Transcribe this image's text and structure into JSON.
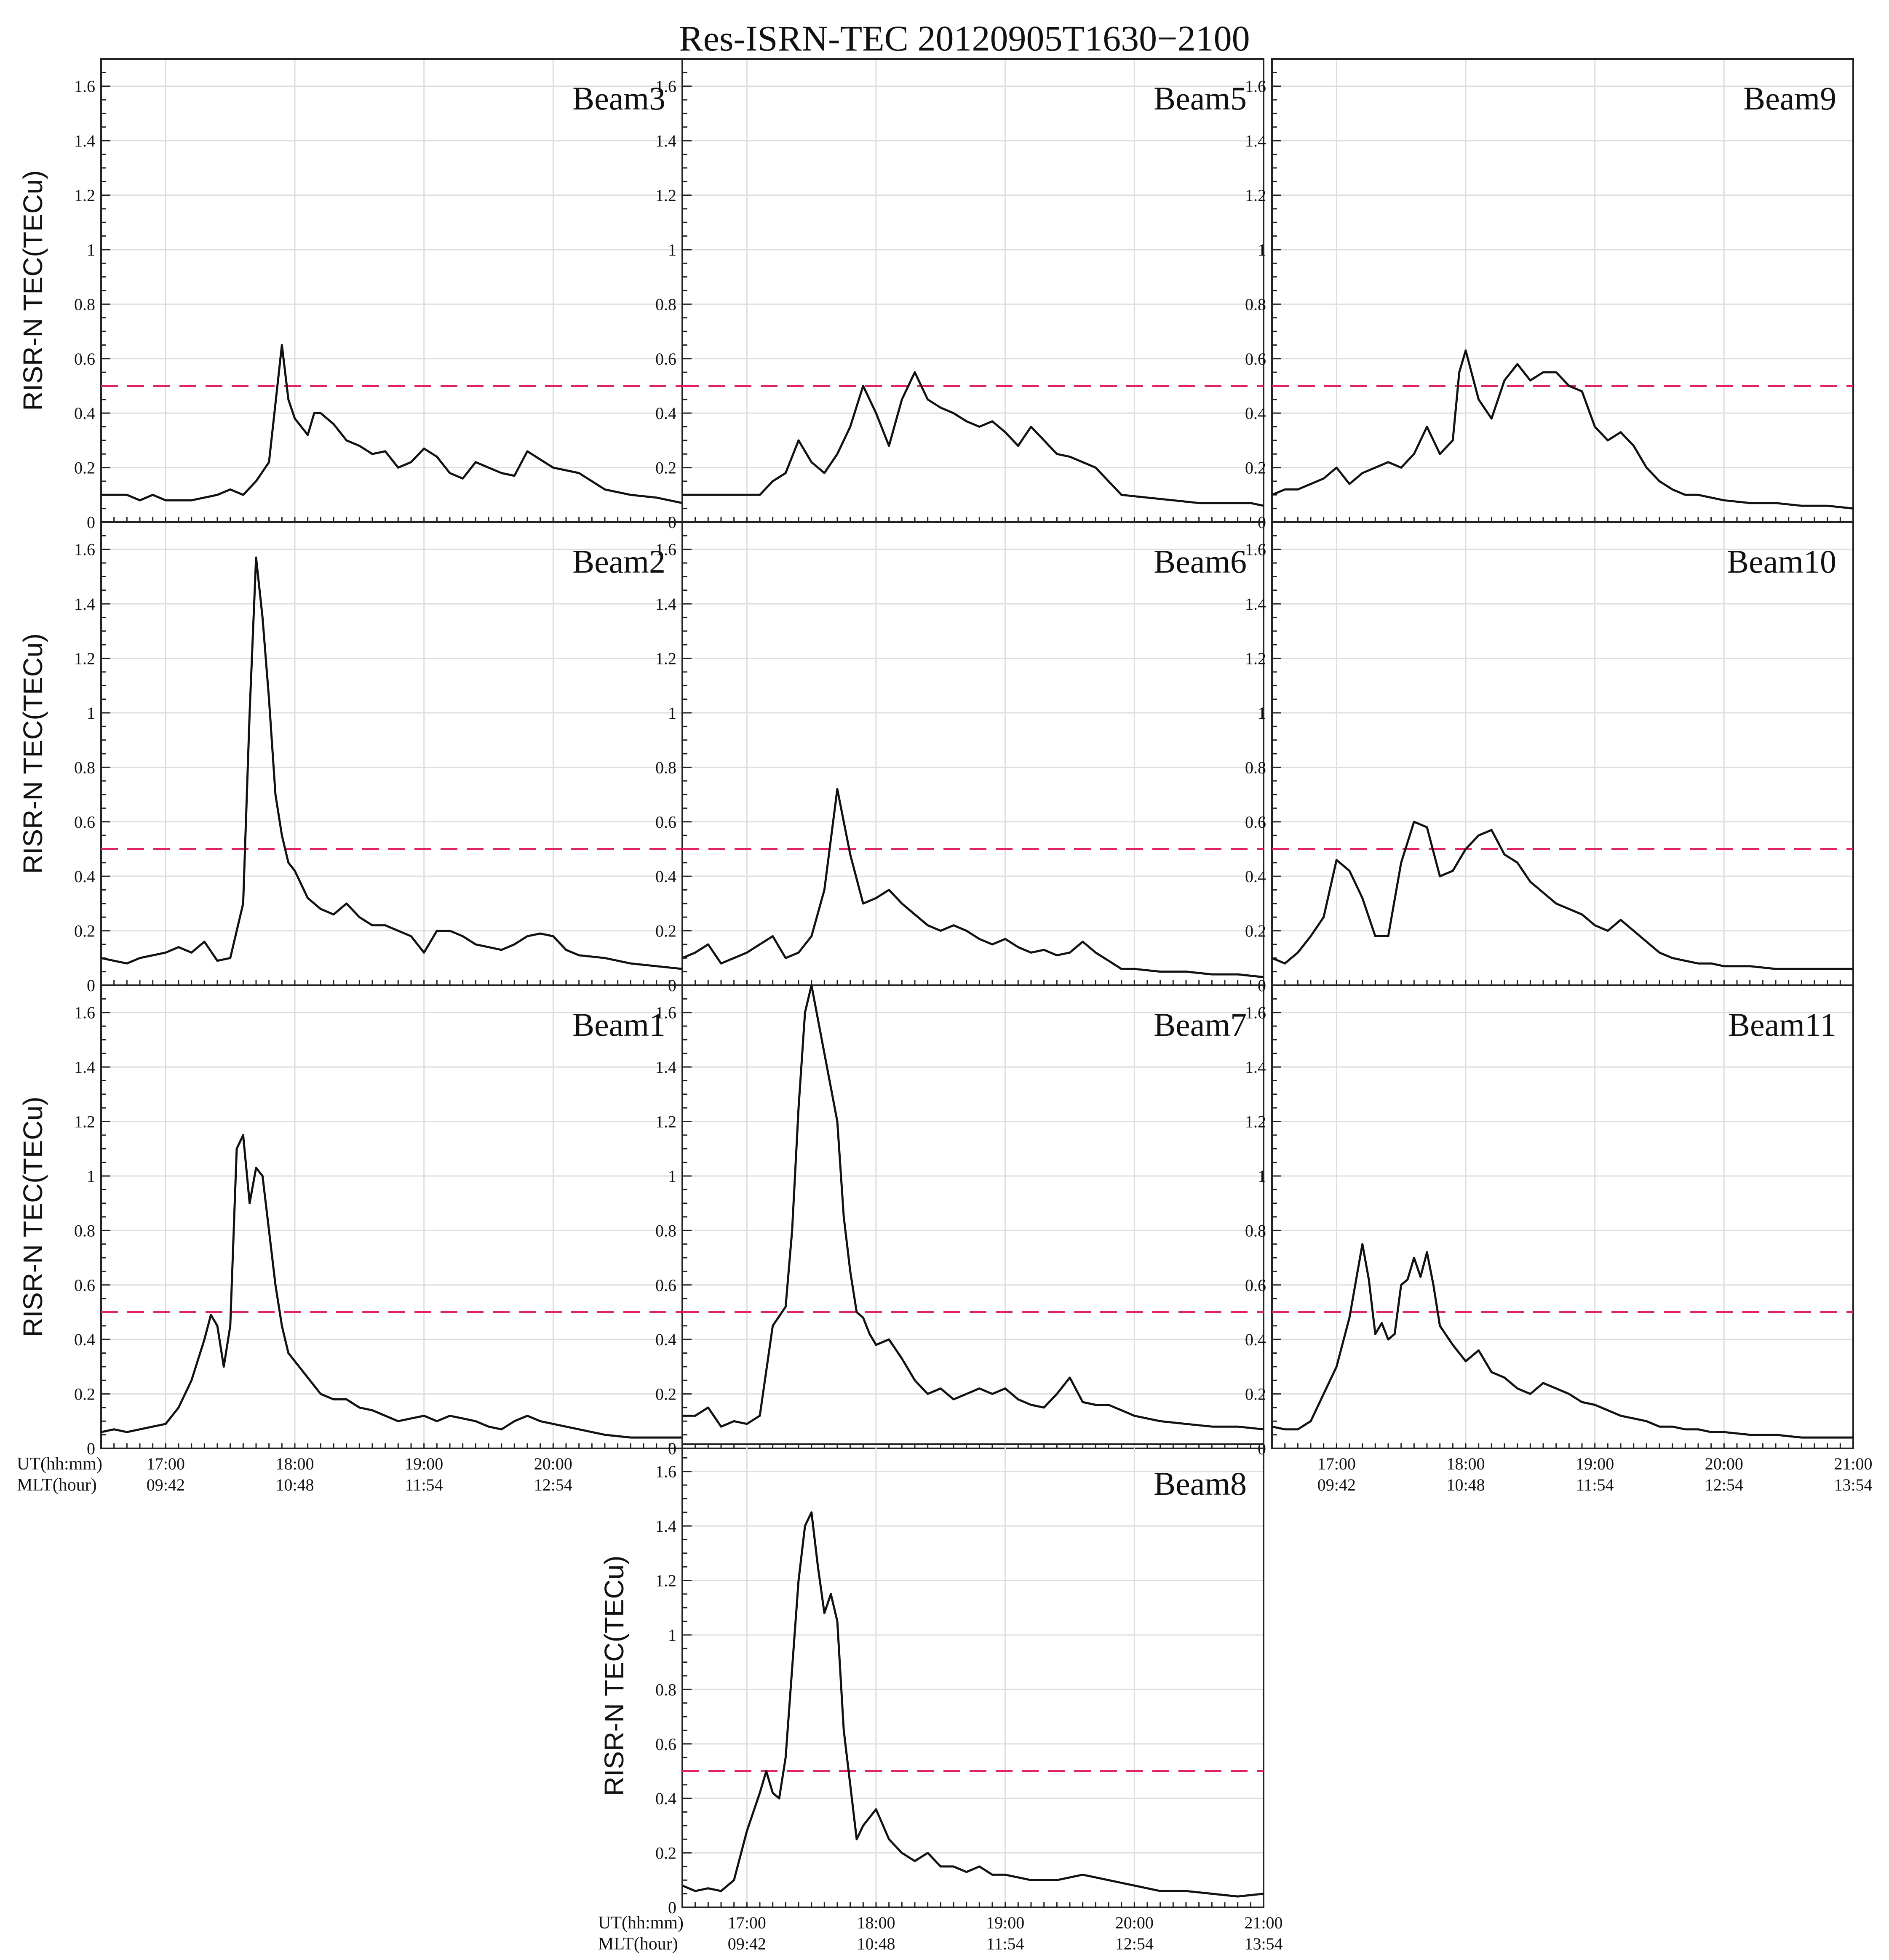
{
  "chart_data": {
    "type": "line",
    "title": "Res-ISRN-TEC  20120905T1630−2100",
    "ylabel": "RISR-N TEC(TECu)",
    "ylim": [
      0,
      1.7
    ],
    "y_ticks": [
      0,
      0.2,
      0.4,
      0.6,
      0.8,
      1,
      1.2,
      1.4,
      1.6
    ],
    "y_tick_labels": [
      "0",
      "0.2",
      "0.4",
      "0.6",
      "0.8",
      "1",
      "1.2",
      "1.4",
      "1.6"
    ],
    "xlim": [
      16.5,
      21.0
    ],
    "x_ticks": [
      17,
      18,
      19,
      20,
      21
    ],
    "x_axis_labels": {
      "ut": "UT(hh:mm)",
      "mlt": "MLT(hour)"
    },
    "ut_tick_labels": [
      "17:00",
      "18:00",
      "19:00",
      "20:00",
      "21:00"
    ],
    "mlt_tick_labels": [
      "09:42",
      "10:48",
      "11:54",
      "12:54",
      "13:54"
    ],
    "threshold": 0.5,
    "x_unit": "UT hours (decimal)",
    "panels": [
      {
        "name": "Beam3",
        "x": [
          16.5,
          16.7,
          16.8,
          16.9,
          17.0,
          17.2,
          17.4,
          17.5,
          17.6,
          17.7,
          17.8,
          17.9,
          17.95,
          18.0,
          18.1,
          18.15,
          18.2,
          18.3,
          18.4,
          18.5,
          18.6,
          18.7,
          18.8,
          18.9,
          19.0,
          19.1,
          19.2,
          19.3,
          19.4,
          19.5,
          19.6,
          19.7,
          19.8,
          19.9,
          20.0,
          20.2,
          20.4,
          20.6,
          20.8,
          21.0
        ],
        "values": [
          0.1,
          0.1,
          0.08,
          0.1,
          0.08,
          0.08,
          0.1,
          0.12,
          0.1,
          0.15,
          0.22,
          0.65,
          0.45,
          0.38,
          0.32,
          0.4,
          0.4,
          0.36,
          0.3,
          0.28,
          0.25,
          0.26,
          0.2,
          0.22,
          0.27,
          0.24,
          0.18,
          0.16,
          0.22,
          0.2,
          0.18,
          0.17,
          0.26,
          0.23,
          0.2,
          0.18,
          0.12,
          0.1,
          0.09,
          0.07
        ]
      },
      {
        "name": "Beam5",
        "x": [
          16.5,
          16.7,
          16.9,
          17.1,
          17.2,
          17.3,
          17.4,
          17.5,
          17.6,
          17.7,
          17.8,
          17.9,
          18.0,
          18.1,
          18.2,
          18.3,
          18.4,
          18.5,
          18.6,
          18.7,
          18.8,
          18.9,
          19.0,
          19.1,
          19.2,
          19.3,
          19.4,
          19.5,
          19.7,
          19.9,
          20.1,
          20.3,
          20.5,
          20.7,
          20.9,
          21.0
        ],
        "values": [
          0.1,
          0.1,
          0.1,
          0.1,
          0.15,
          0.18,
          0.3,
          0.22,
          0.18,
          0.25,
          0.35,
          0.5,
          0.4,
          0.28,
          0.45,
          0.55,
          0.45,
          0.42,
          0.4,
          0.37,
          0.35,
          0.37,
          0.33,
          0.28,
          0.35,
          0.3,
          0.25,
          0.24,
          0.2,
          0.1,
          0.09,
          0.08,
          0.07,
          0.07,
          0.07,
          0.06
        ]
      },
      {
        "name": "Beam9",
        "x": [
          16.5,
          16.6,
          16.7,
          16.8,
          16.9,
          17.0,
          17.1,
          17.2,
          17.3,
          17.4,
          17.5,
          17.6,
          17.7,
          17.8,
          17.9,
          17.95,
          18.0,
          18.1,
          18.2,
          18.3,
          18.4,
          18.5,
          18.6,
          18.7,
          18.8,
          18.9,
          19.0,
          19.1,
          19.2,
          19.3,
          19.4,
          19.5,
          19.6,
          19.7,
          19.8,
          19.9,
          20.0,
          20.2,
          20.4,
          20.6,
          20.8,
          21.0
        ],
        "values": [
          0.1,
          0.12,
          0.12,
          0.14,
          0.16,
          0.2,
          0.14,
          0.18,
          0.2,
          0.22,
          0.2,
          0.25,
          0.35,
          0.25,
          0.3,
          0.55,
          0.63,
          0.45,
          0.38,
          0.52,
          0.58,
          0.52,
          0.55,
          0.55,
          0.5,
          0.48,
          0.35,
          0.3,
          0.33,
          0.28,
          0.2,
          0.15,
          0.12,
          0.1,
          0.1,
          0.09,
          0.08,
          0.07,
          0.07,
          0.06,
          0.06,
          0.05
        ]
      },
      {
        "name": "Beam2",
        "x": [
          16.5,
          16.6,
          16.7,
          16.8,
          16.9,
          17.0,
          17.1,
          17.2,
          17.3,
          17.4,
          17.5,
          17.6,
          17.65,
          17.7,
          17.75,
          17.8,
          17.85,
          17.9,
          17.95,
          18.0,
          18.1,
          18.2,
          18.3,
          18.4,
          18.5,
          18.6,
          18.7,
          18.8,
          18.9,
          19.0,
          19.1,
          19.2,
          19.3,
          19.4,
          19.5,
          19.6,
          19.7,
          19.8,
          19.9,
          20.0,
          20.1,
          20.2,
          20.4,
          20.6,
          20.8,
          21.0
        ],
        "values": [
          0.1,
          0.09,
          0.08,
          0.1,
          0.11,
          0.12,
          0.14,
          0.12,
          0.16,
          0.09,
          0.1,
          0.3,
          1.0,
          1.57,
          1.35,
          1.05,
          0.7,
          0.55,
          0.45,
          0.42,
          0.32,
          0.28,
          0.26,
          0.3,
          0.25,
          0.22,
          0.22,
          0.2,
          0.18,
          0.12,
          0.2,
          0.2,
          0.18,
          0.15,
          0.14,
          0.13,
          0.15,
          0.18,
          0.19,
          0.18,
          0.13,
          0.11,
          0.1,
          0.08,
          0.07,
          0.06
        ]
      },
      {
        "name": "Beam6",
        "x": [
          16.5,
          16.6,
          16.7,
          16.8,
          16.9,
          17.0,
          17.1,
          17.2,
          17.3,
          17.4,
          17.5,
          17.6,
          17.7,
          17.8,
          17.9,
          18.0,
          18.1,
          18.2,
          18.3,
          18.4,
          18.5,
          18.6,
          18.7,
          18.8,
          18.9,
          19.0,
          19.1,
          19.2,
          19.3,
          19.4,
          19.5,
          19.6,
          19.7,
          19.8,
          19.9,
          20.0,
          20.2,
          20.4,
          20.6,
          20.8,
          21.0
        ],
        "values": [
          0.1,
          0.12,
          0.15,
          0.08,
          0.1,
          0.12,
          0.15,
          0.18,
          0.1,
          0.12,
          0.18,
          0.35,
          0.72,
          0.48,
          0.3,
          0.32,
          0.35,
          0.3,
          0.26,
          0.22,
          0.2,
          0.22,
          0.2,
          0.17,
          0.15,
          0.17,
          0.14,
          0.12,
          0.13,
          0.11,
          0.12,
          0.16,
          0.12,
          0.09,
          0.06,
          0.06,
          0.05,
          0.05,
          0.04,
          0.04,
          0.03
        ]
      },
      {
        "name": "Beam10",
        "x": [
          16.5,
          16.6,
          16.7,
          16.8,
          16.9,
          17.0,
          17.1,
          17.2,
          17.3,
          17.4,
          17.5,
          17.6,
          17.7,
          17.8,
          17.9,
          18.0,
          18.1,
          18.2,
          18.3,
          18.4,
          18.5,
          18.6,
          18.7,
          18.8,
          18.9,
          19.0,
          19.1,
          19.2,
          19.3,
          19.4,
          19.5,
          19.6,
          19.7,
          19.8,
          19.9,
          20.0,
          20.2,
          20.4,
          20.6,
          20.8,
          21.0
        ],
        "values": [
          0.1,
          0.08,
          0.12,
          0.18,
          0.25,
          0.46,
          0.42,
          0.32,
          0.18,
          0.18,
          0.45,
          0.6,
          0.58,
          0.4,
          0.42,
          0.5,
          0.55,
          0.57,
          0.48,
          0.45,
          0.38,
          0.34,
          0.3,
          0.28,
          0.26,
          0.22,
          0.2,
          0.24,
          0.2,
          0.16,
          0.12,
          0.1,
          0.09,
          0.08,
          0.08,
          0.07,
          0.07,
          0.06,
          0.06,
          0.06,
          0.06
        ]
      },
      {
        "name": "Beam1",
        "x": [
          16.5,
          16.6,
          16.7,
          16.8,
          16.9,
          17.0,
          17.1,
          17.2,
          17.3,
          17.35,
          17.4,
          17.45,
          17.5,
          17.55,
          17.6,
          17.65,
          17.7,
          17.75,
          17.8,
          17.85,
          17.9,
          17.95,
          18.0,
          18.1,
          18.2,
          18.3,
          18.4,
          18.5,
          18.6,
          18.7,
          18.8,
          18.9,
          19.0,
          19.1,
          19.2,
          19.3,
          19.4,
          19.5,
          19.6,
          19.7,
          19.8,
          19.9,
          20.0,
          20.2,
          20.4,
          20.6,
          20.8,
          21.0
        ],
        "values": [
          0.06,
          0.07,
          0.06,
          0.07,
          0.08,
          0.09,
          0.15,
          0.25,
          0.4,
          0.49,
          0.45,
          0.3,
          0.45,
          1.1,
          1.15,
          0.9,
          1.03,
          1.0,
          0.8,
          0.6,
          0.45,
          0.35,
          0.32,
          0.26,
          0.2,
          0.18,
          0.18,
          0.15,
          0.14,
          0.12,
          0.1,
          0.11,
          0.12,
          0.1,
          0.12,
          0.11,
          0.1,
          0.08,
          0.07,
          0.1,
          0.12,
          0.1,
          0.09,
          0.07,
          0.05,
          0.04,
          0.04,
          0.04
        ]
      },
      {
        "name": "Beam7",
        "x": [
          16.5,
          16.6,
          16.7,
          16.8,
          16.9,
          17.0,
          17.1,
          17.2,
          17.3,
          17.35,
          17.4,
          17.45,
          17.5,
          17.6,
          17.7,
          17.75,
          17.8,
          17.85,
          17.9,
          17.95,
          18.0,
          18.1,
          18.2,
          18.3,
          18.4,
          18.5,
          18.6,
          18.7,
          18.8,
          18.9,
          19.0,
          19.1,
          19.2,
          19.3,
          19.4,
          19.5,
          19.6,
          19.7,
          19.8,
          19.9,
          20.0,
          20.2,
          20.4,
          20.6,
          20.8,
          21.0
        ],
        "values": [
          0.12,
          0.12,
          0.15,
          0.08,
          0.1,
          0.09,
          0.12,
          0.45,
          0.52,
          0.8,
          1.25,
          1.6,
          1.7,
          1.45,
          1.2,
          0.85,
          0.65,
          0.5,
          0.48,
          0.42,
          0.38,
          0.4,
          0.33,
          0.25,
          0.2,
          0.22,
          0.18,
          0.2,
          0.22,
          0.2,
          0.22,
          0.18,
          0.16,
          0.15,
          0.2,
          0.26,
          0.17,
          0.16,
          0.16,
          0.14,
          0.12,
          0.1,
          0.09,
          0.08,
          0.08,
          0.07
        ]
      },
      {
        "name": "Beam11",
        "x": [
          16.5,
          16.6,
          16.7,
          16.8,
          16.9,
          17.0,
          17.1,
          17.2,
          17.25,
          17.3,
          17.35,
          17.4,
          17.45,
          17.5,
          17.55,
          17.6,
          17.65,
          17.7,
          17.75,
          17.8,
          17.9,
          18.0,
          18.1,
          18.2,
          18.3,
          18.4,
          18.5,
          18.6,
          18.7,
          18.8,
          18.9,
          19.0,
          19.1,
          19.2,
          19.3,
          19.4,
          19.5,
          19.6,
          19.7,
          19.8,
          19.9,
          20.0,
          20.2,
          20.4,
          20.6,
          20.8,
          21.0
        ],
        "values": [
          0.08,
          0.07,
          0.07,
          0.1,
          0.2,
          0.3,
          0.48,
          0.75,
          0.62,
          0.42,
          0.46,
          0.4,
          0.42,
          0.6,
          0.62,
          0.7,
          0.63,
          0.72,
          0.6,
          0.45,
          0.38,
          0.32,
          0.36,
          0.28,
          0.26,
          0.22,
          0.2,
          0.24,
          0.22,
          0.2,
          0.17,
          0.16,
          0.14,
          0.12,
          0.11,
          0.1,
          0.08,
          0.08,
          0.07,
          0.07,
          0.06,
          0.06,
          0.05,
          0.05,
          0.04,
          0.04,
          0.04
        ]
      },
      {
        "name": "Beam8",
        "x": [
          16.5,
          16.6,
          16.7,
          16.8,
          16.9,
          17.0,
          17.1,
          17.15,
          17.2,
          17.25,
          17.3,
          17.4,
          17.45,
          17.5,
          17.55,
          17.6,
          17.65,
          17.7,
          17.75,
          17.8,
          17.85,
          17.9,
          18.0,
          18.1,
          18.2,
          18.3,
          18.4,
          18.5,
          18.6,
          18.7,
          18.8,
          18.9,
          19.0,
          19.2,
          19.4,
          19.6,
          19.8,
          20.0,
          20.2,
          20.4,
          20.6,
          20.8,
          21.0
        ],
        "values": [
          0.08,
          0.06,
          0.07,
          0.06,
          0.1,
          0.28,
          0.42,
          0.5,
          0.42,
          0.4,
          0.55,
          1.2,
          1.4,
          1.45,
          1.25,
          1.08,
          1.15,
          1.05,
          0.65,
          0.45,
          0.25,
          0.3,
          0.36,
          0.25,
          0.2,
          0.17,
          0.2,
          0.15,
          0.15,
          0.13,
          0.15,
          0.12,
          0.12,
          0.1,
          0.1,
          0.12,
          0.1,
          0.08,
          0.06,
          0.06,
          0.05,
          0.04,
          0.05
        ]
      }
    ]
  }
}
